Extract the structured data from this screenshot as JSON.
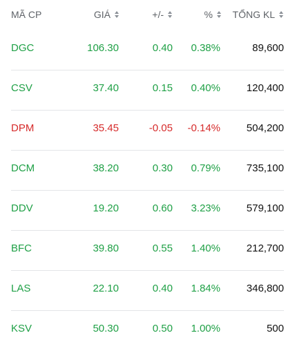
{
  "header": {
    "symbol": "MÃ CP",
    "price": "GIÁ",
    "change": "+/-",
    "percent": "%",
    "volume": "TỔNG KL"
  },
  "colors": {
    "up": "#1fa046",
    "down": "#d62b2b",
    "header_text": "#5f6368",
    "divider": "#e3e5e8"
  },
  "rows": [
    {
      "symbol": "DGC",
      "price": "106.30",
      "change": "0.40",
      "percent": "0.38%",
      "volume": "89,600",
      "trend": "up"
    },
    {
      "symbol": "CSV",
      "price": "37.40",
      "change": "0.15",
      "percent": "0.40%",
      "volume": "120,400",
      "trend": "up"
    },
    {
      "symbol": "DPM",
      "price": "35.45",
      "change": "-0.05",
      "percent": "-0.14%",
      "volume": "504,200",
      "trend": "down"
    },
    {
      "symbol": "DCM",
      "price": "38.20",
      "change": "0.30",
      "percent": "0.79%",
      "volume": "735,100",
      "trend": "up"
    },
    {
      "symbol": "DDV",
      "price": "19.20",
      "change": "0.60",
      "percent": "3.23%",
      "volume": "579,100",
      "trend": "up"
    },
    {
      "symbol": "BFC",
      "price": "39.80",
      "change": "0.55",
      "percent": "1.40%",
      "volume": "212,700",
      "trend": "up"
    },
    {
      "symbol": "LAS",
      "price": "22.10",
      "change": "0.40",
      "percent": "1.84%",
      "volume": "346,800",
      "trend": "up"
    },
    {
      "symbol": "KSV",
      "price": "50.30",
      "change": "0.50",
      "percent": "1.00%",
      "volume": "500",
      "trend": "up"
    }
  ]
}
